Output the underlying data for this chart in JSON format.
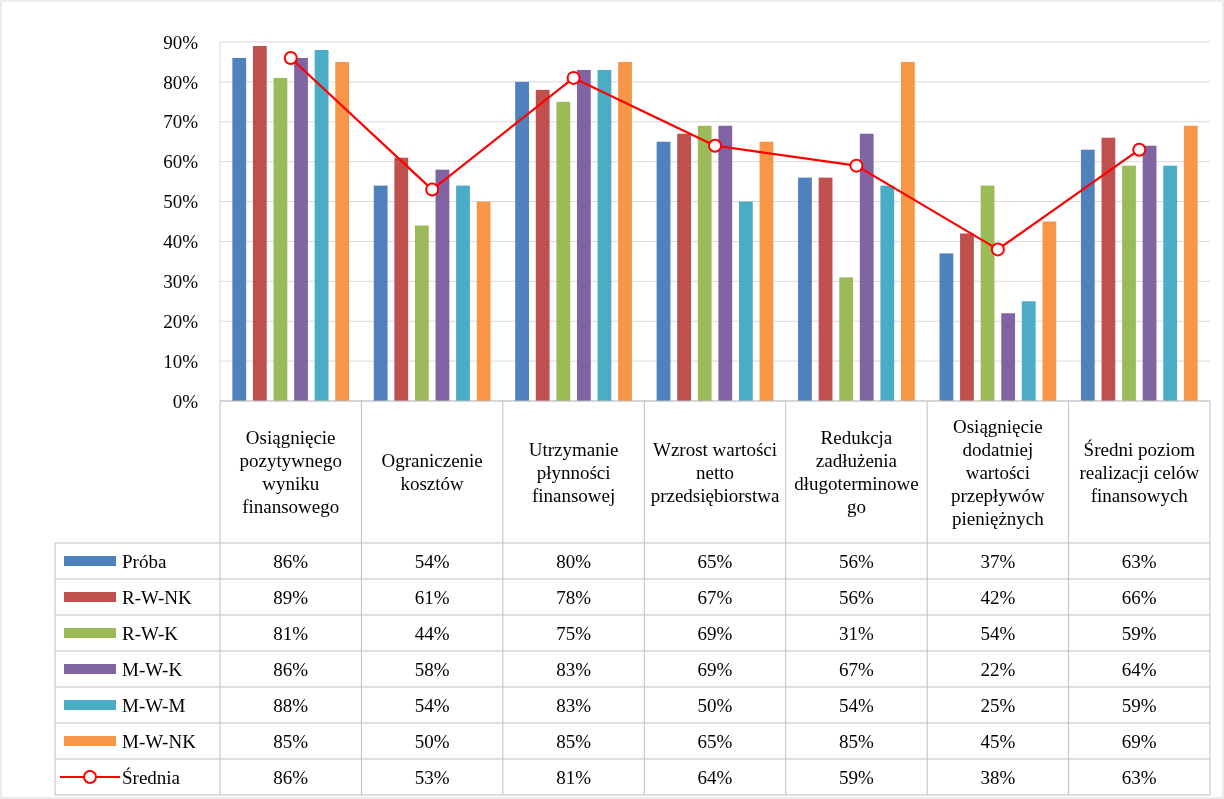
{
  "chart_data": {
    "type": "bar",
    "categories": [
      "Osiągnięcie pozytywnego wyniku finansowego",
      "Ograniczenie kosztów",
      "Utrzymanie płynności finansowej",
      "Wzrost wartości netto przedsiębiorstwa",
      "Redukcja zadłużenia długoterminowego",
      "Osiągnięcie dodatniej wartości przepływów pieniężnych",
      "Średni poziom realizacji celów finansowych"
    ],
    "series": [
      {
        "name": "Próba",
        "color": "#4f81bd",
        "values": [
          86,
          54,
          80,
          65,
          56,
          37,
          63
        ],
        "value_labels": [
          "86%",
          "54%",
          "80%",
          "65%",
          "56%",
          "37%",
          "63%"
        ]
      },
      {
        "name": "R-W-NK",
        "color": "#c0504d",
        "values": [
          89,
          61,
          78,
          67,
          56,
          42,
          66
        ],
        "value_labels": [
          "89%",
          "61%",
          "78%",
          "67%",
          "56%",
          "42%",
          "66%"
        ]
      },
      {
        "name": "R-W-K",
        "color": "#9bbb59",
        "values": [
          81,
          44,
          75,
          69,
          31,
          54,
          59
        ],
        "value_labels": [
          "81%",
          "44%",
          "75%",
          "69%",
          "31%",
          "54%",
          "59%"
        ]
      },
      {
        "name": "M-W-K",
        "color": "#8064a2",
        "values": [
          86,
          58,
          83,
          69,
          67,
          22,
          64
        ],
        "value_labels": [
          "86%",
          "58%",
          "83%",
          "69%",
          "67%",
          "22%",
          "64%"
        ]
      },
      {
        "name": "M-W-M",
        "color": "#4bacc6",
        "values": [
          88,
          54,
          83,
          50,
          54,
          25,
          59
        ],
        "value_labels": [
          "88%",
          "54%",
          "83%",
          "50%",
          "54%",
          "25%",
          "59%"
        ]
      },
      {
        "name": "M-W-NK",
        "color": "#f79646",
        "values": [
          85,
          50,
          85,
          65,
          85,
          45,
          69
        ],
        "value_labels": [
          "85%",
          "50%",
          "85%",
          "65%",
          "85%",
          "45%",
          "69%"
        ]
      },
      {
        "name": "Średnia",
        "type": "line",
        "color": "#ff0000",
        "marker": "circle",
        "values": [
          86,
          53,
          81,
          64,
          59,
          38,
          63
        ],
        "value_labels": [
          "86%",
          "53%",
          "81%",
          "64%",
          "59%",
          "38%",
          "63%"
        ]
      }
    ],
    "ylim": [
      0,
      90
    ],
    "yticks": [
      {
        "value": 0,
        "label": "0%"
      },
      {
        "value": 10,
        "label": "10%"
      },
      {
        "value": 20,
        "label": "20%"
      },
      {
        "value": 30,
        "label": "30%"
      },
      {
        "value": 40,
        "label": "40%"
      },
      {
        "value": 50,
        "label": "50%"
      },
      {
        "value": 60,
        "label": "60%"
      },
      {
        "value": 70,
        "label": "70%"
      },
      {
        "value": 80,
        "label": "80%"
      },
      {
        "value": 90,
        "label": "90%"
      }
    ],
    "grid": "y",
    "legend": "bottom left"
  }
}
